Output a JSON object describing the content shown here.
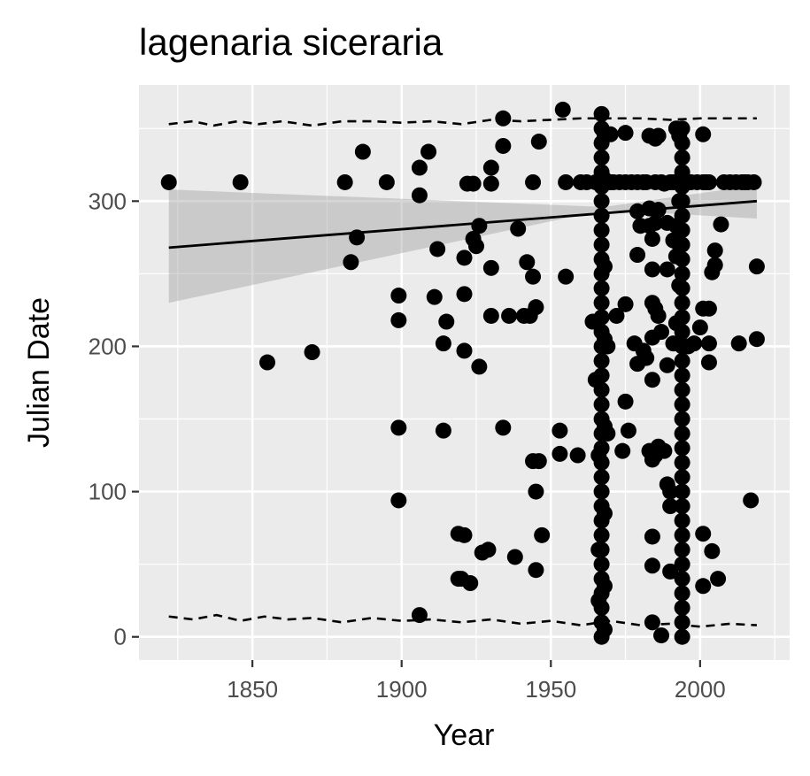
{
  "chart_data": {
    "type": "scatter",
    "title": "lagenaria siceraria",
    "xlabel": "Year",
    "ylabel": "Julian Date",
    "xlim": [
      1812,
      2030
    ],
    "ylim": [
      -16,
      380
    ],
    "x_ticks": [
      1850,
      1900,
      1950,
      2000
    ],
    "x_tick_labels": [
      "1850",
      "1900",
      "1950",
      "2000"
    ],
    "y_ticks": [
      0,
      100,
      200,
      300
    ],
    "y_tick_labels": [
      "0",
      "100",
      "200",
      "300"
    ],
    "grid": true,
    "background_color": "#ebebeb",
    "point_color": "#000000",
    "points": [
      [
        1822,
        313
      ],
      [
        1846,
        313
      ],
      [
        1855,
        189
      ],
      [
        1870,
        196
      ],
      [
        1881,
        313
      ],
      [
        1883,
        258
      ],
      [
        1885,
        275
      ],
      [
        1887,
        334
      ],
      [
        1895,
        313
      ],
      [
        1899,
        235
      ],
      [
        1899,
        218
      ],
      [
        1899,
        144
      ],
      [
        1899,
        94
      ],
      [
        1906,
        15
      ],
      [
        1906,
        304
      ],
      [
        1906,
        323
      ],
      [
        1909,
        334
      ],
      [
        1911,
        234
      ],
      [
        1912,
        267
      ],
      [
        1914,
        202
      ],
      [
        1914,
        142
      ],
      [
        1915,
        217
      ],
      [
        1919,
        40
      ],
      [
        1919,
        71
      ],
      [
        1920,
        40
      ],
      [
        1921,
        70
      ],
      [
        1921,
        261
      ],
      [
        1921,
        236
      ],
      [
        1921,
        197
      ],
      [
        1922,
        312
      ],
      [
        1923,
        37
      ],
      [
        1924,
        312
      ],
      [
        1924,
        274
      ],
      [
        1925,
        269
      ],
      [
        1926,
        283
      ],
      [
        1926,
        186
      ],
      [
        1927,
        58
      ],
      [
        1929,
        60
      ],
      [
        1930,
        323
      ],
      [
        1930,
        312
      ],
      [
        1930,
        254
      ],
      [
        1930,
        221
      ],
      [
        1934,
        357
      ],
      [
        1934,
        338
      ],
      [
        1934,
        144
      ],
      [
        1936,
        221
      ],
      [
        1938,
        55
      ],
      [
        1939,
        281
      ],
      [
        1941,
        221
      ],
      [
        1942,
        258
      ],
      [
        1943,
        221
      ],
      [
        1944,
        248
      ],
      [
        1944,
        313
      ],
      [
        1944,
        121
      ],
      [
        1945,
        100
      ],
      [
        1945,
        227
      ],
      [
        1945,
        46
      ],
      [
        1946,
        341
      ],
      [
        1946,
        121
      ],
      [
        1947,
        70
      ],
      [
        1953,
        142
      ],
      [
        1953,
        126
      ],
      [
        1954,
        363
      ],
      [
        1955,
        248
      ],
      [
        1955,
        313
      ],
      [
        1959,
        125
      ],
      [
        1960,
        313
      ],
      [
        1962,
        313
      ],
      [
        1964,
        217
      ],
      [
        1965,
        177
      ],
      [
        1965,
        313
      ],
      [
        1966,
        125
      ],
      [
        1966,
        60
      ],
      [
        1966,
        25
      ],
      [
        1967,
        0
      ],
      [
        1967,
        10
      ],
      [
        1967,
        20
      ],
      [
        1967,
        30
      ],
      [
        1967,
        40
      ],
      [
        1967,
        50
      ],
      [
        1967,
        60
      ],
      [
        1967,
        70
      ],
      [
        1967,
        80
      ],
      [
        1967,
        90
      ],
      [
        1967,
        100
      ],
      [
        1967,
        110
      ],
      [
        1967,
        120
      ],
      [
        1967,
        130
      ],
      [
        1967,
        140
      ],
      [
        1967,
        150
      ],
      [
        1967,
        160
      ],
      [
        1967,
        170
      ],
      [
        1967,
        180
      ],
      [
        1967,
        190
      ],
      [
        1967,
        200
      ],
      [
        1967,
        210
      ],
      [
        1967,
        220
      ],
      [
        1967,
        230
      ],
      [
        1967,
        240
      ],
      [
        1967,
        250
      ],
      [
        1967,
        260
      ],
      [
        1967,
        270
      ],
      [
        1967,
        280
      ],
      [
        1967,
        290
      ],
      [
        1967,
        300
      ],
      [
        1967,
        310
      ],
      [
        1967,
        320
      ],
      [
        1967,
        330
      ],
      [
        1967,
        340
      ],
      [
        1967,
        350
      ],
      [
        1967,
        360
      ],
      [
        1968,
        5
      ],
      [
        1968,
        35
      ],
      [
        1968,
        85
      ],
      [
        1968,
        145
      ],
      [
        1968,
        205
      ],
      [
        1968,
        255
      ],
      [
        1968,
        315
      ],
      [
        1968,
        345
      ],
      [
        1969,
        313
      ],
      [
        1969,
        200
      ],
      [
        1969,
        140
      ],
      [
        1970,
        313
      ],
      [
        1970,
        346
      ],
      [
        1971,
        313
      ],
      [
        1972,
        221
      ],
      [
        1973,
        313
      ],
      [
        1974,
        128
      ],
      [
        1975,
        229
      ],
      [
        1975,
        347
      ],
      [
        1975,
        162
      ],
      [
        1975,
        313
      ],
      [
        1976,
        142
      ],
      [
        1977,
        313
      ],
      [
        1978,
        202
      ],
      [
        1979,
        263
      ],
      [
        1979,
        293
      ],
      [
        1979,
        188
      ],
      [
        1979,
        313
      ],
      [
        1980,
        283
      ],
      [
        1981,
        313
      ],
      [
        1981,
        197
      ],
      [
        1982,
        192
      ],
      [
        1982,
        313
      ],
      [
        1983,
        283
      ],
      [
        1983,
        128
      ],
      [
        1983,
        345
      ],
      [
        1983,
        295
      ],
      [
        1984,
        274
      ],
      [
        1984,
        253
      ],
      [
        1984,
        230
      ],
      [
        1984,
        206
      ],
      [
        1984,
        177
      ],
      [
        1984,
        122
      ],
      [
        1984,
        69
      ],
      [
        1984,
        49
      ],
      [
        1984,
        10
      ],
      [
        1985,
        313
      ],
      [
        1985,
        343
      ],
      [
        1985,
        285
      ],
      [
        1985,
        226
      ],
      [
        1985,
        125
      ],
      [
        1986,
        221
      ],
      [
        1986,
        131
      ],
      [
        1986,
        294
      ],
      [
        1986,
        345
      ],
      [
        1987,
        1
      ],
      [
        1987,
        313
      ],
      [
        1987,
        210
      ],
      [
        1988,
        128
      ],
      [
        1988,
        312
      ],
      [
        1989,
        253
      ],
      [
        1989,
        285
      ],
      [
        1989,
        105
      ],
      [
        1989,
        187
      ],
      [
        1990,
        45
      ],
      [
        1990,
        90
      ],
      [
        1990,
        313
      ],
      [
        1990,
        100
      ],
      [
        1991,
        273
      ],
      [
        1991,
        313
      ],
      [
        1991,
        202
      ],
      [
        1992,
        350
      ],
      [
        1992,
        283
      ],
      [
        1992,
        262
      ],
      [
        1992,
        216
      ],
      [
        1993,
        242
      ],
      [
        1993,
        300
      ],
      [
        1993,
        345
      ],
      [
        1993,
        270
      ],
      [
        1994,
        0
      ],
      [
        1994,
        10
      ],
      [
        1994,
        20
      ],
      [
        1994,
        30
      ],
      [
        1994,
        40
      ],
      [
        1994,
        50
      ],
      [
        1994,
        60
      ],
      [
        1994,
        70
      ],
      [
        1994,
        80
      ],
      [
        1994,
        90
      ],
      [
        1994,
        100
      ],
      [
        1994,
        110
      ],
      [
        1994,
        120
      ],
      [
        1994,
        130
      ],
      [
        1994,
        140
      ],
      [
        1994,
        150
      ],
      [
        1994,
        160
      ],
      [
        1994,
        170
      ],
      [
        1994,
        180
      ],
      [
        1994,
        190
      ],
      [
        1994,
        200
      ],
      [
        1994,
        210
      ],
      [
        1994,
        220
      ],
      [
        1994,
        230
      ],
      [
        1994,
        240
      ],
      [
        1994,
        250
      ],
      [
        1994,
        260
      ],
      [
        1994,
        270
      ],
      [
        1994,
        280
      ],
      [
        1994,
        290
      ],
      [
        1994,
        300
      ],
      [
        1994,
        310
      ],
      [
        1994,
        320
      ],
      [
        1994,
        330
      ],
      [
        1994,
        340
      ],
      [
        1994,
        350
      ],
      [
        1995,
        313
      ],
      [
        1996,
        200
      ],
      [
        1996,
        313
      ],
      [
        1997,
        313
      ],
      [
        1998,
        202
      ],
      [
        1999,
        313
      ],
      [
        2000,
        213
      ],
      [
        2001,
        346
      ],
      [
        2001,
        313
      ],
      [
        2001,
        226
      ],
      [
        2001,
        71
      ],
      [
        2001,
        35
      ],
      [
        2002,
        313
      ],
      [
        2003,
        202
      ],
      [
        2003,
        226
      ],
      [
        2003,
        313
      ],
      [
        2003,
        189
      ],
      [
        2004,
        251
      ],
      [
        2004,
        59
      ],
      [
        2005,
        266
      ],
      [
        2005,
        256
      ],
      [
        2006,
        40
      ],
      [
        2007,
        284
      ],
      [
        2008,
        313
      ],
      [
        2010,
        313
      ],
      [
        2012,
        313
      ],
      [
        2013,
        202
      ],
      [
        2014,
        313
      ],
      [
        2015,
        313
      ],
      [
        2016,
        313
      ],
      [
        2017,
        94
      ],
      [
        2018,
        313
      ],
      [
        2019,
        255
      ],
      [
        2019,
        205
      ]
    ],
    "fit_line": {
      "x": [
        1822,
        2019
      ],
      "y": [
        268,
        300
      ]
    },
    "confidence_band": {
      "x": [
        1822,
        1968,
        2019
      ],
      "upper": [
        308,
        296,
        311
      ],
      "lower": [
        230,
        294,
        288
      ]
    },
    "quantile_upper": {
      "x": [
        1822,
        1830,
        1837,
        1845,
        1852,
        1860,
        1870,
        1880,
        1890,
        1900,
        1910,
        1920,
        1930,
        1940,
        1950,
        1960,
        1970,
        1980,
        1990,
        2000,
        2010,
        2019
      ],
      "y": [
        353,
        355,
        352,
        355,
        353,
        355,
        352,
        355,
        355,
        354,
        355,
        353,
        356,
        355,
        356,
        357,
        357,
        357,
        356,
        357,
        357,
        357
      ]
    },
    "quantile_lower": {
      "x": [
        1822,
        1830,
        1838,
        1846,
        1854,
        1862,
        1870,
        1880,
        1890,
        1900,
        1910,
        1920,
        1930,
        1940,
        1950,
        1960,
        1970,
        1980,
        1990,
        2000,
        2010,
        2019
      ],
      "y": [
        14,
        12,
        15,
        11,
        14,
        12,
        13,
        10,
        13,
        11,
        12,
        10,
        12,
        9,
        11,
        8,
        11,
        8,
        9,
        7,
        9,
        8
      ]
    }
  }
}
